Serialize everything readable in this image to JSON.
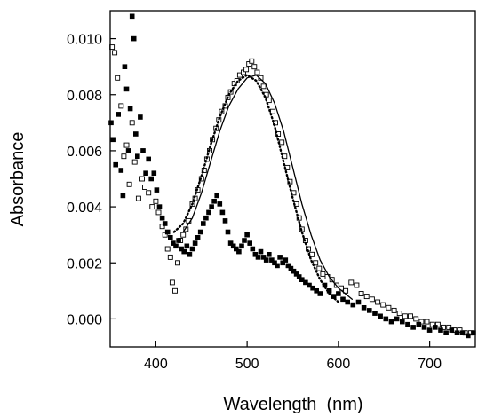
{
  "chart_data": {
    "type": "scatter",
    "xlabel": "Wavelength  (nm)",
    "ylabel": "Absorbance",
    "xlim": [
      350,
      750
    ],
    "ylim": [
      -0.001,
      0.011
    ],
    "xticks": [
      400,
      500,
      600,
      700
    ],
    "xtick_labels": [
      "400",
      "500",
      "600",
      "700"
    ],
    "yticks": [
      0.0,
      0.002,
      0.004,
      0.006,
      0.008,
      0.01
    ],
    "ytick_labels": [
      "0.000",
      "0.002",
      "0.004",
      "0.006",
      "0.008",
      "0.010"
    ],
    "grid": false,
    "legend": "none",
    "series": [
      {
        "marker": "open-square",
        "points": [
          [
            352,
            0.0097
          ],
          [
            355,
            0.0095
          ],
          [
            358,
            0.0086
          ],
          [
            362,
            0.0076
          ],
          [
            365,
            0.0058
          ],
          [
            368,
            0.0062
          ],
          [
            371,
            0.0048
          ],
          [
            374,
            0.007
          ],
          [
            377,
            0.0056
          ],
          [
            381,
            0.0043
          ],
          [
            385,
            0.005
          ],
          [
            388,
            0.0047
          ],
          [
            392,
            0.0045
          ],
          [
            396,
            0.004
          ],
          [
            400,
            0.0042
          ],
          [
            403,
            0.0038
          ],
          [
            407,
            0.0033
          ],
          [
            410,
            0.003
          ],
          [
            413,
            0.0025
          ],
          [
            416,
            0.0022
          ],
          [
            418,
            0.0013
          ],
          [
            421,
            0.001
          ],
          [
            424,
            0.002
          ],
          [
            427,
            0.0028
          ],
          [
            430,
            0.003
          ],
          [
            433,
            0.0032
          ],
          [
            436,
            0.0035
          ],
          [
            440,
            0.0041
          ],
          [
            443,
            0.0043
          ],
          [
            446,
            0.0046
          ],
          [
            450,
            0.005
          ],
          [
            453,
            0.0053
          ],
          [
            456,
            0.0057
          ],
          [
            459,
            0.006
          ],
          [
            462,
            0.0064
          ],
          [
            466,
            0.0068
          ],
          [
            469,
            0.0071
          ],
          [
            472,
            0.0074
          ],
          [
            476,
            0.0076
          ],
          [
            479,
            0.0079
          ],
          [
            482,
            0.0081
          ],
          [
            486,
            0.0084
          ],
          [
            489,
            0.0085
          ],
          [
            492,
            0.0087
          ],
          [
            496,
            0.0088
          ],
          [
            499,
            0.0089
          ],
          [
            502,
            0.0091
          ],
          [
            505,
            0.0092
          ],
          [
            508,
            0.009
          ],
          [
            511,
            0.0088
          ],
          [
            515,
            0.0086
          ],
          [
            518,
            0.0083
          ],
          [
            521,
            0.008
          ],
          [
            524,
            0.0078
          ],
          [
            528,
            0.0074
          ],
          [
            531,
            0.007
          ],
          [
            534,
            0.0066
          ],
          [
            538,
            0.0063
          ],
          [
            541,
            0.0058
          ],
          [
            544,
            0.0054
          ],
          [
            547,
            0.0049
          ],
          [
            551,
            0.0045
          ],
          [
            554,
            0.0041
          ],
          [
            557,
            0.0036
          ],
          [
            560,
            0.0032
          ],
          [
            564,
            0.0028
          ],
          [
            567,
            0.0025
          ],
          [
            571,
            0.0023
          ],
          [
            575,
            0.002
          ],
          [
            579,
            0.0018
          ],
          [
            583,
            0.0016
          ],
          [
            588,
            0.0015
          ],
          [
            593,
            0.0014
          ],
          [
            598,
            0.0012
          ],
          [
            603,
            0.0011
          ],
          [
            608,
            0.001
          ],
          [
            614,
            0.0013
          ],
          [
            620,
            0.0012
          ],
          [
            625,
            0.0009
          ],
          [
            631,
            0.0008
          ],
          [
            637,
            0.0007
          ],
          [
            643,
            0.0006
          ],
          [
            649,
            0.0005
          ],
          [
            655,
            0.0004
          ],
          [
            661,
            0.0003
          ],
          [
            667,
            0.0002
          ],
          [
            673,
            0.0001
          ],
          [
            679,
            0.0001
          ],
          [
            685,
            0.0
          ],
          [
            691,
            -0.0001
          ],
          [
            697,
            -0.0001
          ],
          [
            703,
            -0.0002
          ],
          [
            709,
            -0.0002
          ],
          [
            715,
            -0.0003
          ],
          [
            721,
            -0.0003
          ],
          [
            727,
            -0.0004
          ],
          [
            733,
            -0.0004
          ],
          [
            739,
            -0.0005
          ],
          [
            745,
            -0.0005
          ]
        ]
      },
      {
        "marker": "filled-square",
        "points": [
          [
            351,
            0.007
          ],
          [
            353,
            0.0064
          ],
          [
            356,
            0.0055
          ],
          [
            359,
            0.0073
          ],
          [
            362,
            0.0053
          ],
          [
            364,
            0.0044
          ],
          [
            366,
            0.009
          ],
          [
            368,
            0.0082
          ],
          [
            370,
            0.006
          ],
          [
            372,
            0.0075
          ],
          [
            374,
            0.0108
          ],
          [
            376,
            0.01
          ],
          [
            378,
            0.0066
          ],
          [
            380,
            0.0058
          ],
          [
            383,
            0.0072
          ],
          [
            386,
            0.006
          ],
          [
            389,
            0.0052
          ],
          [
            392,
            0.0057
          ],
          [
            395,
            0.005
          ],
          [
            398,
            0.0052
          ],
          [
            401,
            0.0046
          ],
          [
            404,
            0.004
          ],
          [
            407,
            0.0036
          ],
          [
            410,
            0.0034
          ],
          [
            413,
            0.0031
          ],
          [
            416,
            0.0029
          ],
          [
            419,
            0.0027
          ],
          [
            422,
            0.0026
          ],
          [
            425,
            0.0028
          ],
          [
            428,
            0.0025
          ],
          [
            431,
            0.0024
          ],
          [
            434,
            0.0026
          ],
          [
            437,
            0.0023
          ],
          [
            440,
            0.0025
          ],
          [
            443,
            0.0027
          ],
          [
            446,
            0.0029
          ],
          [
            449,
            0.0031
          ],
          [
            452,
            0.0034
          ],
          [
            455,
            0.0036
          ],
          [
            458,
            0.0038
          ],
          [
            461,
            0.004
          ],
          [
            464,
            0.0042
          ],
          [
            467,
            0.0044
          ],
          [
            470,
            0.0041
          ],
          [
            473,
            0.0038
          ],
          [
            476,
            0.0035
          ],
          [
            479,
            0.0031
          ],
          [
            482,
            0.0027
          ],
          [
            485,
            0.0026
          ],
          [
            488,
            0.0025
          ],
          [
            491,
            0.0024
          ],
          [
            494,
            0.0026
          ],
          [
            497,
            0.0028
          ],
          [
            500,
            0.003
          ],
          [
            503,
            0.0027
          ],
          [
            506,
            0.0025
          ],
          [
            509,
            0.0023
          ],
          [
            512,
            0.0022
          ],
          [
            515,
            0.0024
          ],
          [
            518,
            0.0022
          ],
          [
            521,
            0.0021
          ],
          [
            524,
            0.0023
          ],
          [
            527,
            0.0021
          ],
          [
            530,
            0.002
          ],
          [
            533,
            0.0019
          ],
          [
            536,
            0.0022
          ],
          [
            539,
            0.002
          ],
          [
            542,
            0.0021
          ],
          [
            545,
            0.0019
          ],
          [
            548,
            0.0018
          ],
          [
            551,
            0.0017
          ],
          [
            554,
            0.0016
          ],
          [
            557,
            0.0015
          ],
          [
            560,
            0.0014
          ],
          [
            564,
            0.0013
          ],
          [
            568,
            0.0012
          ],
          [
            572,
            0.0011
          ],
          [
            576,
            0.001
          ],
          [
            580,
            0.0009
          ],
          [
            585,
            0.0012
          ],
          [
            590,
            0.001
          ],
          [
            595,
            0.0008
          ],
          [
            600,
            0.0009
          ],
          [
            605,
            0.0007
          ],
          [
            610,
            0.0006
          ],
          [
            616,
            0.0005
          ],
          [
            622,
            0.0006
          ],
          [
            628,
            0.0004
          ],
          [
            634,
            0.0003
          ],
          [
            640,
            0.0002
          ],
          [
            646,
            0.0001
          ],
          [
            652,
            0.0
          ],
          [
            658,
            -0.0001
          ],
          [
            664,
            0.0
          ],
          [
            670,
            -0.0001
          ],
          [
            676,
            -0.0002
          ],
          [
            682,
            -0.0003
          ],
          [
            688,
            -0.0002
          ],
          [
            694,
            -0.0003
          ],
          [
            700,
            -0.0004
          ],
          [
            706,
            -0.0003
          ],
          [
            712,
            -0.0004
          ],
          [
            718,
            -0.0005
          ],
          [
            724,
            -0.0004
          ],
          [
            730,
            -0.0005
          ],
          [
            736,
            -0.0005
          ],
          [
            742,
            -0.0006
          ],
          [
            748,
            -0.0005
          ]
        ]
      },
      {
        "style": "solid-line",
        "points": [
          [
            430,
            0.0031
          ],
          [
            440,
            0.0036
          ],
          [
            450,
            0.0045
          ],
          [
            460,
            0.0056
          ],
          [
            470,
            0.0067
          ],
          [
            480,
            0.0076
          ],
          [
            490,
            0.0082
          ],
          [
            500,
            0.0086
          ],
          [
            510,
            0.0087
          ],
          [
            520,
            0.0084
          ],
          [
            530,
            0.0077
          ],
          [
            540,
            0.0067
          ],
          [
            550,
            0.0054
          ],
          [
            560,
            0.0041
          ],
          [
            570,
            0.003
          ],
          [
            580,
            0.0021
          ],
          [
            590,
            0.0015
          ],
          [
            600,
            0.0011
          ],
          [
            615,
            0.0007
          ]
        ]
      },
      {
        "style": "dotted-line",
        "points": [
          [
            420,
            0.0031
          ],
          [
            430,
            0.0034
          ],
          [
            440,
            0.0041
          ],
          [
            450,
            0.0051
          ],
          [
            460,
            0.0062
          ],
          [
            470,
            0.0072
          ],
          [
            480,
            0.008
          ],
          [
            490,
            0.0085
          ],
          [
            500,
            0.0087
          ],
          [
            510,
            0.0085
          ],
          [
            520,
            0.0079
          ],
          [
            530,
            0.0069
          ],
          [
            540,
            0.0056
          ],
          [
            550,
            0.0043
          ],
          [
            560,
            0.0031
          ],
          [
            570,
            0.0021
          ],
          [
            580,
            0.0014
          ],
          [
            590,
            0.0009
          ],
          [
            600,
            0.0006
          ]
        ]
      }
    ]
  }
}
